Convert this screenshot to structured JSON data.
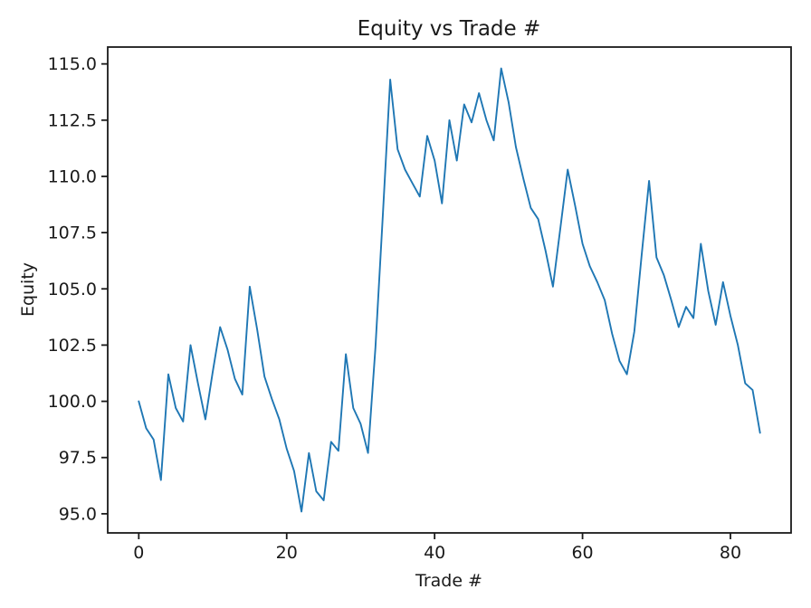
{
  "figure": {
    "background": "#ffffff"
  },
  "chart_data": {
    "type": "line",
    "title": "Equity vs Trade #",
    "xlabel": "Trade #",
    "ylabel": "Equity",
    "grid": false,
    "legend": "none",
    "line_color": "#1f77b4",
    "axis_color": "#1a1a1a",
    "xlim": [
      -4.2,
      88.2
    ],
    "ylim": [
      94.15,
      115.75
    ],
    "xticks": [
      0,
      20,
      40,
      60,
      80
    ],
    "xtick_labels": [
      "0",
      "20",
      "40",
      "60",
      "80"
    ],
    "yticks": [
      95.0,
      97.5,
      100.0,
      102.5,
      105.0,
      107.5,
      110.0,
      112.5,
      115.0
    ],
    "ytick_labels": [
      "95.0",
      "97.5",
      "100.0",
      "102.5",
      "105.0",
      "107.5",
      "110.0",
      "112.5",
      "115.0"
    ],
    "x": [
      0,
      1,
      2,
      3,
      4,
      5,
      6,
      7,
      8,
      9,
      10,
      11,
      12,
      13,
      14,
      15,
      16,
      17,
      18,
      19,
      20,
      21,
      22,
      23,
      24,
      25,
      26,
      27,
      28,
      29,
      30,
      31,
      32,
      33,
      34,
      35,
      36,
      37,
      38,
      39,
      40,
      41,
      42,
      43,
      44,
      45,
      46,
      47,
      48,
      49,
      50,
      51,
      52,
      53,
      54,
      55,
      56,
      57,
      58,
      59,
      60,
      61,
      62,
      63,
      64,
      65,
      66,
      67,
      68,
      69,
      70,
      71,
      72,
      73,
      74,
      75,
      76,
      77,
      78,
      79,
      80,
      81,
      82,
      83,
      84
    ],
    "series": [
      {
        "name": "Equity",
        "values": [
          100.0,
          98.8,
          98.3,
          96.5,
          101.2,
          99.7,
          99.1,
          102.5,
          100.8,
          99.2,
          101.3,
          103.3,
          102.3,
          101.0,
          100.3,
          105.1,
          103.2,
          101.1,
          100.1,
          99.2,
          97.9,
          96.9,
          95.1,
          97.7,
          96.0,
          95.6,
          98.2,
          97.8,
          102.1,
          99.7,
          99.0,
          97.7,
          102.4,
          108.3,
          114.3,
          111.2,
          110.3,
          109.7,
          109.1,
          111.8,
          110.7,
          108.8,
          112.5,
          110.7,
          113.2,
          112.4,
          113.7,
          112.5,
          111.6,
          114.8,
          113.3,
          111.3,
          109.9,
          108.6,
          108.1,
          106.7,
          105.1,
          107.7,
          110.3,
          108.7,
          107.0,
          106.0,
          105.3,
          104.5,
          103.0,
          101.8,
          101.2,
          103.1,
          106.5,
          109.8,
          106.4,
          105.6,
          104.5,
          103.3,
          104.2,
          103.7,
          107.0,
          104.9,
          103.4,
          105.3,
          103.8,
          102.5,
          100.8,
          100.5,
          98.6
        ]
      }
    ]
  }
}
